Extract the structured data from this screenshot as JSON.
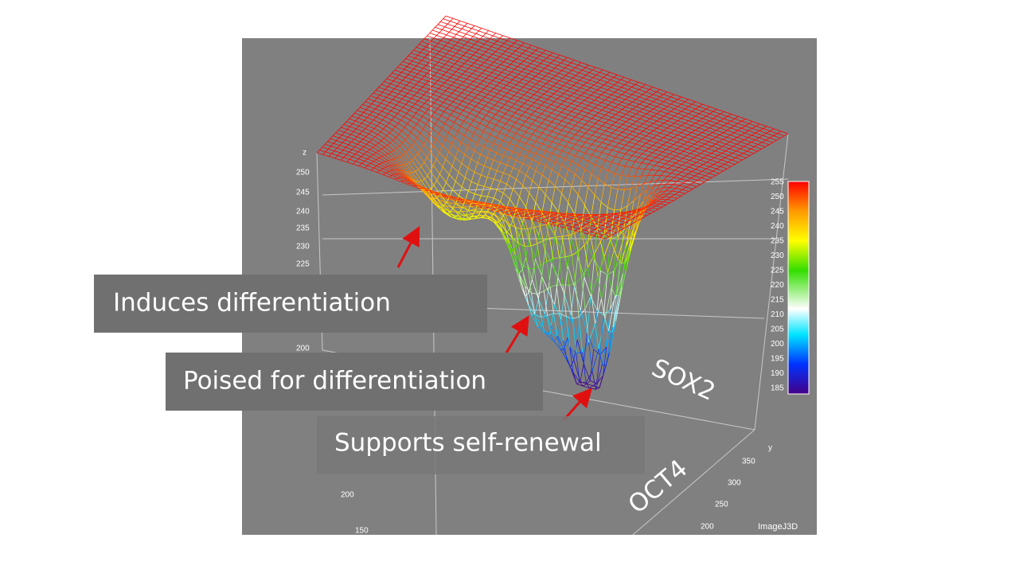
{
  "plot": {
    "z_axis": {
      "label": "z",
      "ticks": [
        "250",
        "245",
        "240",
        "235",
        "230",
        "225",
        "200"
      ]
    },
    "y_axis": {
      "label": "y",
      "ticks": [
        "350",
        "300",
        "250",
        "200"
      ]
    },
    "x_axis": {
      "ticks": [
        "200",
        "150"
      ]
    },
    "colorbar": {
      "ticks": [
        "255",
        "250",
        "245",
        "240",
        "235",
        "230",
        "225",
        "220",
        "215",
        "210",
        "205",
        "200",
        "195",
        "190",
        "185"
      ]
    },
    "watermark": "ImageJ3D"
  },
  "axis_titles": {
    "sox2": "SOX2",
    "oct4": "OCT4"
  },
  "annotations": [
    "Induces differentiation",
    "Poised for differentiation",
    "Supports self-renewal"
  ]
}
